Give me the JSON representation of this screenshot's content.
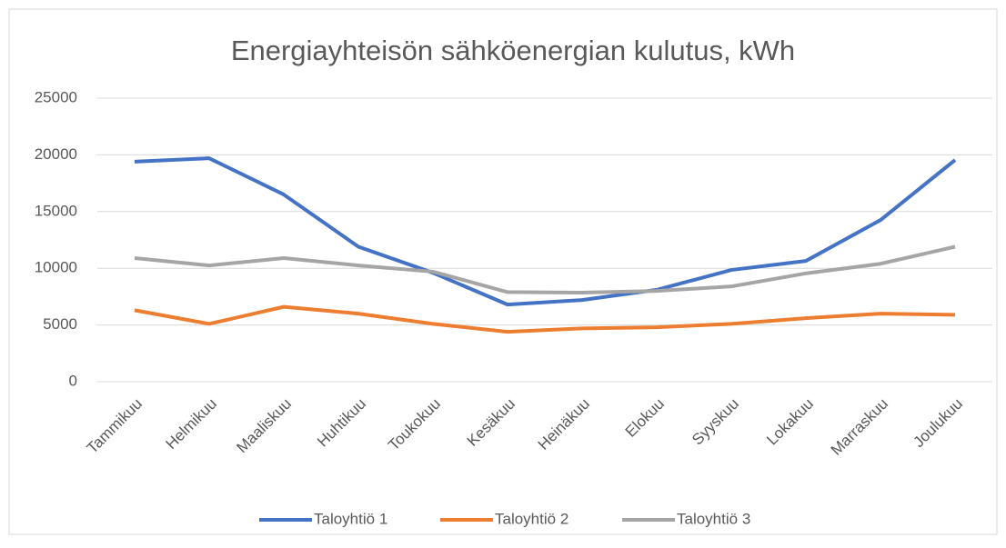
{
  "chart_data": {
    "type": "line",
    "title": "Energiayhteisön sähköenergian kulutus, kWh",
    "categories": [
      "Tammikuu",
      "Helmikuu",
      "Maaliskuu",
      "Huhtikuu",
      "Toukokuu",
      "Kesäkuu",
      "Heinäkuu",
      "Elokuu",
      "Syyskuu",
      "Lokakuu",
      "Marraskuu",
      "Joulukuu"
    ],
    "series": [
      {
        "name": "Taloyhtiö 1",
        "color": "#4472c4",
        "values": [
          19400,
          19700,
          16500,
          11900,
          9600,
          6800,
          7200,
          8100,
          9850,
          10650,
          14250,
          19550
        ]
      },
      {
        "name": "Taloyhtiö 2",
        "color": "#ed7d31",
        "values": [
          6300,
          5100,
          6600,
          6000,
          5100,
          4400,
          4700,
          4800,
          5100,
          5600,
          6000,
          5900
        ]
      },
      {
        "name": "Taloyhtiö 3",
        "color": "#a5a5a5",
        "values": [
          10900,
          10250,
          10900,
          10250,
          9700,
          7900,
          7850,
          8000,
          8400,
          9550,
          10400,
          11900
        ]
      }
    ],
    "ylim": [
      0,
      25000
    ],
    "yticks": [
      0,
      5000,
      10000,
      15000,
      20000,
      25000
    ],
    "grid": true,
    "legend": "bottom"
  }
}
